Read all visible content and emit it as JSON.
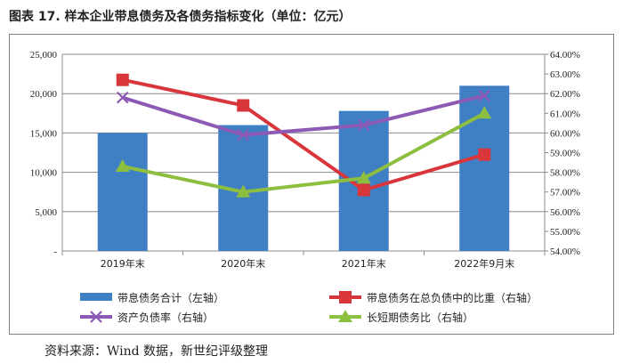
{
  "title": "图表 17. 样本企业带息债务及各债务指标变化（单位：亿元）",
  "source": "资料来源：Wind 数据，新世纪评级整理",
  "colors": {
    "bar": "#3f7fc4",
    "debt_ratio": "#d9363b",
    "leverage": "#8c5ab4",
    "short_long": "#8cbf3f",
    "grid": "#8c8c8c"
  },
  "chart_data": {
    "type": "bar+line",
    "categories": [
      "2019年末",
      "2020年末",
      "2021年末",
      "2022年9月末"
    ],
    "left_axis": {
      "range": [
        0,
        25000
      ],
      "ticks": [
        0,
        5000,
        10000,
        15000,
        20000,
        25000
      ],
      "tick_labels": [
        "-",
        "5,000",
        "10,000",
        "15,000",
        "20,000",
        "25,000"
      ]
    },
    "right_axis": {
      "range": [
        54,
        64
      ],
      "ticks": [
        54,
        55,
        56,
        57,
        58,
        59,
        60,
        61,
        62,
        63,
        64
      ],
      "tick_labels": [
        "54.00%",
        "55.00%",
        "56.00%",
        "57.00%",
        "58.00%",
        "59.00%",
        "60.00%",
        "61.00%",
        "62.00%",
        "63.00%",
        "64.00%"
      ]
    },
    "series": [
      {
        "name": "带息债务合计（左轴）",
        "type": "bar",
        "axis": "left",
        "values": [
          15000,
          16000,
          17800,
          21000
        ]
      },
      {
        "name": "带息债务在总负债中的比重（右轴）",
        "type": "line",
        "marker": "square",
        "axis": "right",
        "values": [
          62.7,
          61.4,
          57.1,
          58.9
        ]
      },
      {
        "name": "资产负债率（右轴）",
        "type": "line",
        "marker": "x",
        "axis": "right",
        "values": [
          61.8,
          59.9,
          60.4,
          61.9
        ]
      },
      {
        "name": "长短期债务比（右轴）",
        "type": "line",
        "marker": "triangle",
        "axis": "right",
        "values": [
          58.3,
          57.0,
          57.7,
          61.0
        ]
      }
    ]
  }
}
